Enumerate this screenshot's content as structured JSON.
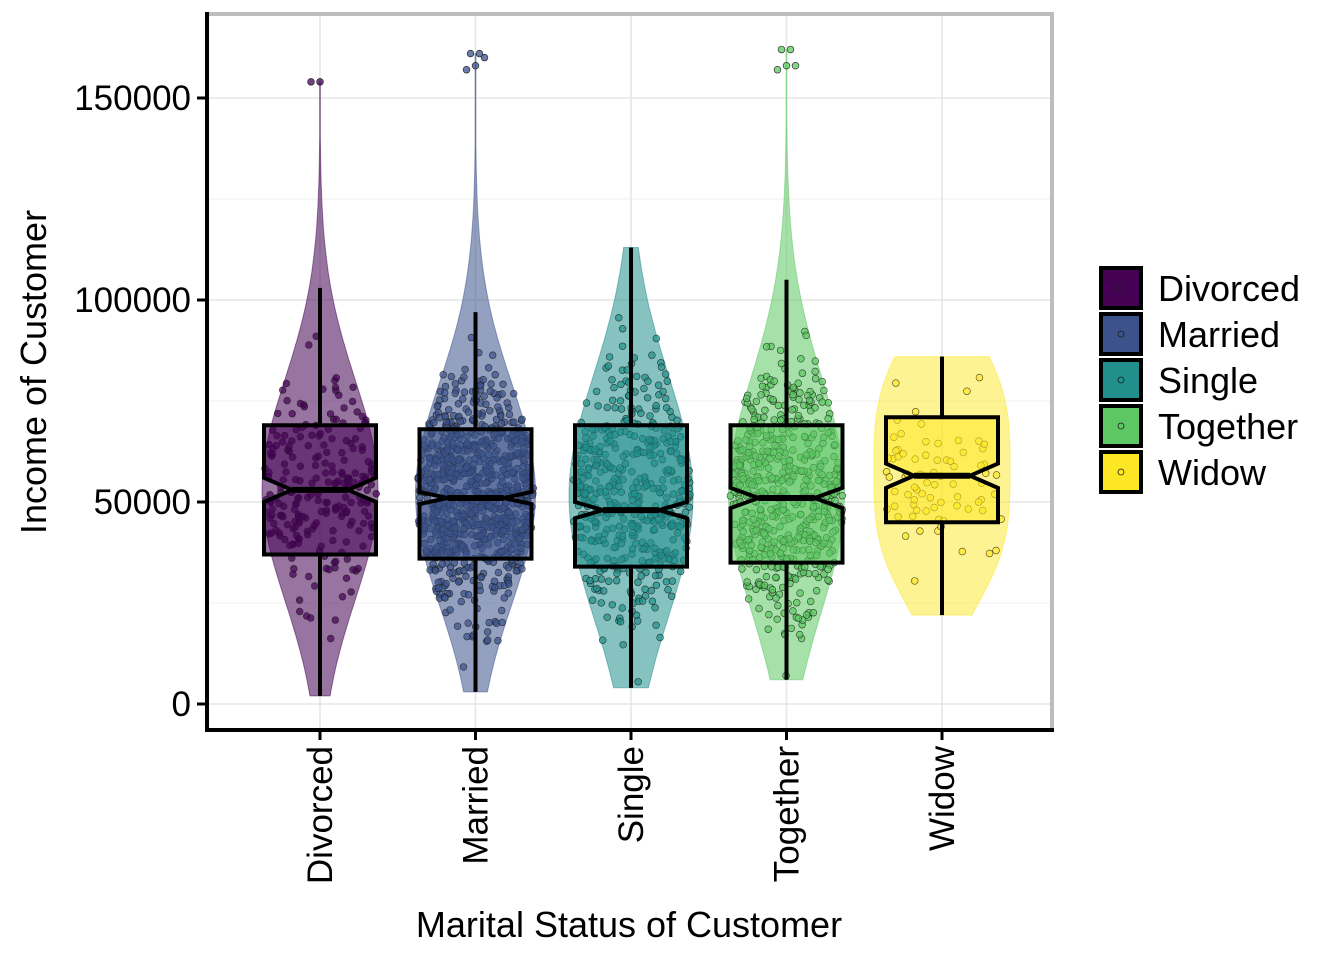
{
  "chart_data": {
    "type": "violin-boxplot",
    "xlabel": "Marital Status of Customer",
    "ylabel": "Income of Customer",
    "ylim": [
      -5000,
      170000
    ],
    "yticks": [
      0,
      50000,
      100000,
      150000
    ],
    "ytick_labels": [
      "0",
      "50000",
      "100000",
      "150000"
    ],
    "grid": true,
    "legend": {
      "placement": "right",
      "entries": [
        "Divorced",
        "Married",
        "Single",
        "Together",
        "Widow"
      ]
    },
    "categories": [
      "Divorced",
      "Married",
      "Single",
      "Together",
      "Widow"
    ],
    "colors": [
      "#440154",
      "#3B528B",
      "#21908C",
      "#5DC863",
      "#FDE725"
    ],
    "series": [
      {
        "name": "Divorced",
        "n_points": 230,
        "box": {
          "q1": 37000,
          "median": 53000,
          "q3": 69000,
          "notch_low": 50000,
          "notch_high": 56000,
          "whisker_low": 2000,
          "whisker_high": 103000
        },
        "outliers": [
          154000,
          154000
        ],
        "range": [
          2000,
          154000
        ]
      },
      {
        "name": "Married",
        "n_points": 850,
        "box": {
          "q1": 36000,
          "median": 51000,
          "q3": 68000,
          "notch_low": 49500,
          "notch_high": 52500,
          "whisker_low": 3000,
          "whisker_high": 97000
        },
        "outliers": [
          157000,
          158000,
          160000,
          161000,
          161000
        ],
        "range": [
          3000,
          161000
        ]
      },
      {
        "name": "Single",
        "n_points": 470,
        "box": {
          "q1": 34000,
          "median": 48000,
          "q3": 69000,
          "notch_low": 46000,
          "notch_high": 50000,
          "whisker_low": 4000,
          "whisker_high": 113000
        },
        "outliers": [],
        "range": [
          4000,
          113000
        ]
      },
      {
        "name": "Together",
        "n_points": 580,
        "box": {
          "q1": 35000,
          "median": 51000,
          "q3": 69000,
          "notch_low": 48500,
          "notch_high": 53500,
          "whisker_low": 6000,
          "whisker_high": 105000
        },
        "outliers": [
          157000,
          158000,
          158000,
          162000,
          162000
        ],
        "range": [
          6000,
          162000
        ]
      },
      {
        "name": "Widow",
        "n_points": 76,
        "box": {
          "q1": 45000,
          "median": 56500,
          "q3": 71000,
          "notch_low": 53500,
          "notch_high": 59500,
          "whisker_low": 22000,
          "whisker_high": 86000
        },
        "outliers": [],
        "range": [
          22000,
          86000
        ]
      }
    ]
  }
}
